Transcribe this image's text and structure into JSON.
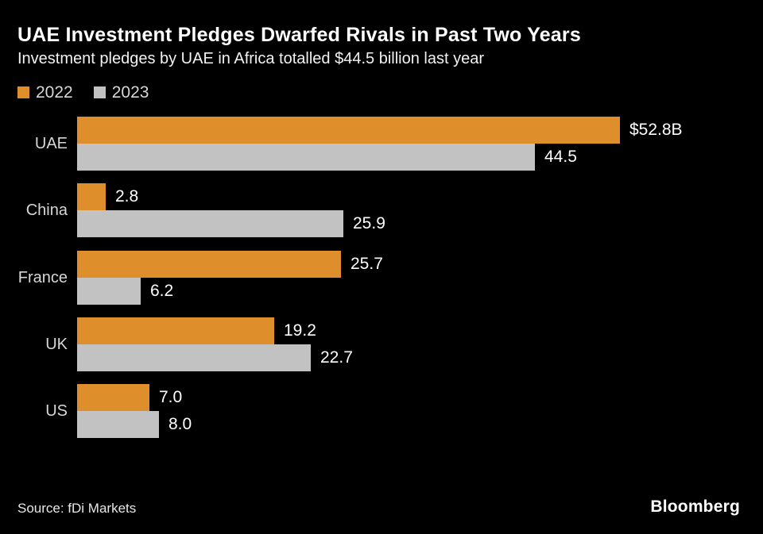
{
  "header": {
    "title": "UAE Investment Pledges Dwarfed Rivals in Past Two Years",
    "subtitle": "Investment pledges by UAE in Africa totalled $44.5 billion last year"
  },
  "colors": {
    "background": "#000000",
    "series_2022": "#DE8F2C",
    "series_2023": "#C2C2C2",
    "value_label": "#FFFFFF",
    "category_label": "#D6D6D6"
  },
  "chart_data": {
    "type": "bar",
    "orientation": "horizontal",
    "title": "UAE Investment Pledges Dwarfed Rivals in Past Two Years",
    "subtitle": "Investment pledges by UAE in Africa totalled $44.5 billion last year",
    "categories": [
      "UAE",
      "China",
      "France",
      "UK",
      "US"
    ],
    "series": [
      {
        "name": "2022",
        "color": "#DE8F2C",
        "values": [
          52.8,
          2.8,
          25.7,
          19.2,
          7.0
        ],
        "labels": [
          "$52.8B",
          "2.8",
          "25.7",
          "19.2",
          "7.0"
        ]
      },
      {
        "name": "2023",
        "color": "#C2C2C2",
        "values": [
          44.5,
          25.9,
          6.2,
          22.7,
          8.0
        ],
        "labels": [
          "44.5",
          "25.9",
          "6.2",
          "22.7",
          "8.0"
        ]
      }
    ],
    "unit": "$ billions",
    "xlim": [
      0,
      52.8
    ],
    "grid": false,
    "axis_ticks": "none",
    "value_labels_shown": true,
    "legend_position": "top-left"
  },
  "footer": {
    "source": "Source: fDi Markets",
    "brand": "Bloomberg"
  }
}
